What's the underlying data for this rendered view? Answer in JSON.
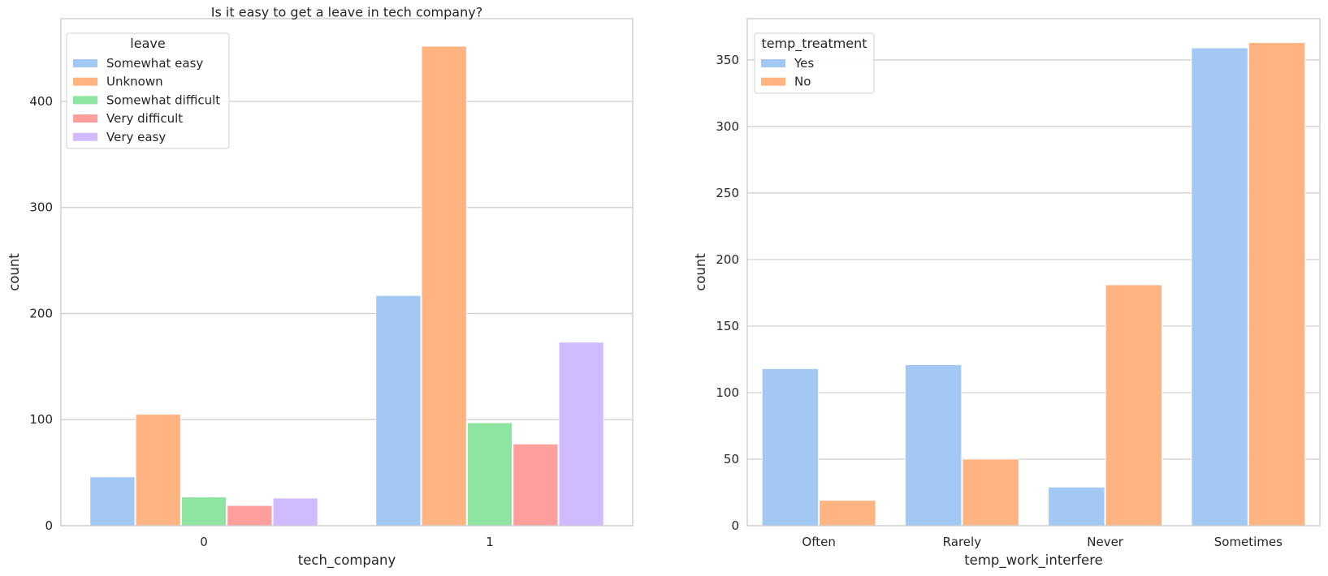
{
  "colors": {
    "grid": "#cccccc",
    "spine": "#cccccc",
    "palette": [
      "#a1c9f4",
      "#ffb482",
      "#8de5a1",
      "#ff9f9b",
      "#d0bbff"
    ]
  },
  "chart_data": [
    {
      "type": "bar",
      "title": "Is it easy to get a leave in tech company?",
      "xlabel": "tech_company",
      "ylabel": "count",
      "categories": [
        "0",
        "1"
      ],
      "ylim": [
        0,
        478
      ],
      "yticks": [
        0,
        100,
        200,
        300,
        400
      ],
      "grid": "horizontal",
      "legend": {
        "title": "leave",
        "placement": "upper-left"
      },
      "series": [
        {
          "name": "Somewhat easy",
          "color": "#a1c9f4",
          "values": [
            46,
            217
          ]
        },
        {
          "name": "Unknown",
          "color": "#ffb482",
          "values": [
            105,
            452
          ]
        },
        {
          "name": "Somewhat difficult",
          "color": "#8de5a1",
          "values": [
            27,
            97
          ]
        },
        {
          "name": "Very difficult",
          "color": "#ff9f9b",
          "values": [
            19,
            77
          ]
        },
        {
          "name": "Very easy",
          "color": "#d0bbff",
          "values": [
            26,
            173
          ]
        }
      ]
    },
    {
      "type": "bar",
      "title": "",
      "xlabel": "temp_work_interfere",
      "ylabel": "count",
      "categories": [
        "Often",
        "Rarely",
        "Never",
        "Sometimes"
      ],
      "ylim": [
        0,
        381
      ],
      "yticks": [
        0,
        50,
        100,
        150,
        200,
        250,
        300,
        350
      ],
      "grid": "horizontal",
      "legend": {
        "title": "temp_treatment",
        "placement": "upper-left"
      },
      "series": [
        {
          "name": "Yes",
          "color": "#a1c9f4",
          "values": [
            118,
            121,
            29,
            359
          ]
        },
        {
          "name": "No",
          "color": "#ffb482",
          "values": [
            19,
            50,
            181,
            363
          ]
        }
      ]
    }
  ]
}
